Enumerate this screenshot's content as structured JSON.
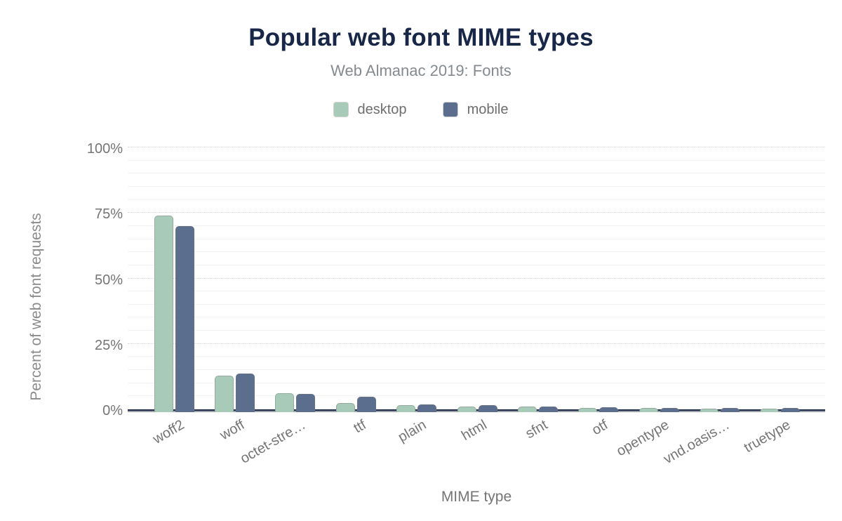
{
  "header": {
    "title": "Popular web font MIME types",
    "subtitle": "Web Almanac 2019: Fonts"
  },
  "chart_data": {
    "type": "bar",
    "title": "Popular web font MIME types",
    "subtitle": "Web Almanac 2019: Fonts",
    "xlabel": "MIME type",
    "ylabel": "Percent of web font requests",
    "ylim": [
      0,
      100
    ],
    "y_tick_values": [
      0,
      25,
      50,
      75,
      100
    ],
    "y_tick_labels": [
      "0%",
      "25%",
      "50%",
      "75%",
      "100%"
    ],
    "minor_grid_step": 5,
    "grid": true,
    "legend_position": "top",
    "categories": [
      "woff2",
      "woff",
      "octet-stre…",
      "ttf",
      "plain",
      "html",
      "sfnt",
      "otf",
      "opentype",
      "vnd.oasis…",
      "truetype"
    ],
    "series": [
      {
        "name": "desktop",
        "color": "#a8cab8",
        "values": [
          74,
          13,
          6.1,
          2.3,
          1.7,
          1.1,
          1.0,
          0.6,
          0.5,
          0.4,
          0.4
        ]
      },
      {
        "name": "mobile",
        "color": "#5b6e8e",
        "values": [
          70,
          13.6,
          5.9,
          4.9,
          1.9,
          1.5,
          1.1,
          0.7,
          0.6,
          0.5,
          0.5
        ]
      }
    ],
    "colors": {
      "title_text": "#182647",
      "subtitle_text": "#858a8f",
      "axis_text": "#757575",
      "axis_line_primary": "#1b2a4c",
      "axis_line_secondary": "#9aa0a6"
    }
  }
}
